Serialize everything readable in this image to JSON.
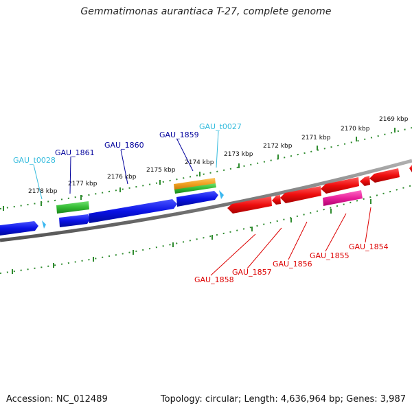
{
  "title": "Gemmatimonas aurantiaca T-27, complete genome",
  "footer": {
    "accession": "Accession: NC_012489",
    "stats": "Topology: circular; Length: 4,636,964 bp; Genes: 3,987"
  },
  "colors": {
    "backbone": "#808080",
    "scale_ticks": "#2e8b2e",
    "cds_forward": "#0a12e6",
    "cds_reverse": "#ee0d0d",
    "rrna_green": "#33bb33",
    "rrna_orange": "#f0a020",
    "trna": "#3cb8f0",
    "pink_feature": "#e8209a",
    "label_forward": "#00009c",
    "label_trna": "#33bbdd",
    "label_reverse": "#dd0000"
  },
  "scale": {
    "ticks": [
      {
        "label": "2178 kbp"
      },
      {
        "label": "2177 kbp"
      },
      {
        "label": "2176 kbp"
      },
      {
        "label": "2175 kbp"
      },
      {
        "label": "2174 kbp"
      },
      {
        "label": "2173 kbp"
      },
      {
        "label": "2172 kbp"
      },
      {
        "label": "2171 kbp"
      },
      {
        "label": "2170 kbp"
      },
      {
        "label": "2169 kbp"
      }
    ]
  },
  "genes": {
    "forward": [
      {
        "label": "GAU_t0028",
        "type": "tRNA"
      },
      {
        "label": "GAU_1861",
        "type": "rRNA"
      },
      {
        "label": "GAU_1860",
        "type": "CDS"
      },
      {
        "label": "GAU_1859",
        "type": "CDS"
      },
      {
        "label": "GAU_t0027",
        "type": "tRNA"
      }
    ],
    "reverse": [
      {
        "label": "GAU_1858",
        "type": "CDS"
      },
      {
        "label": "GAU_1857",
        "type": "CDS"
      },
      {
        "label": "GAU_1856",
        "type": "CDS"
      },
      {
        "label": "GAU_1855",
        "type": "CDS"
      },
      {
        "label": "GAU_1854",
        "type": "CDS"
      }
    ]
  }
}
